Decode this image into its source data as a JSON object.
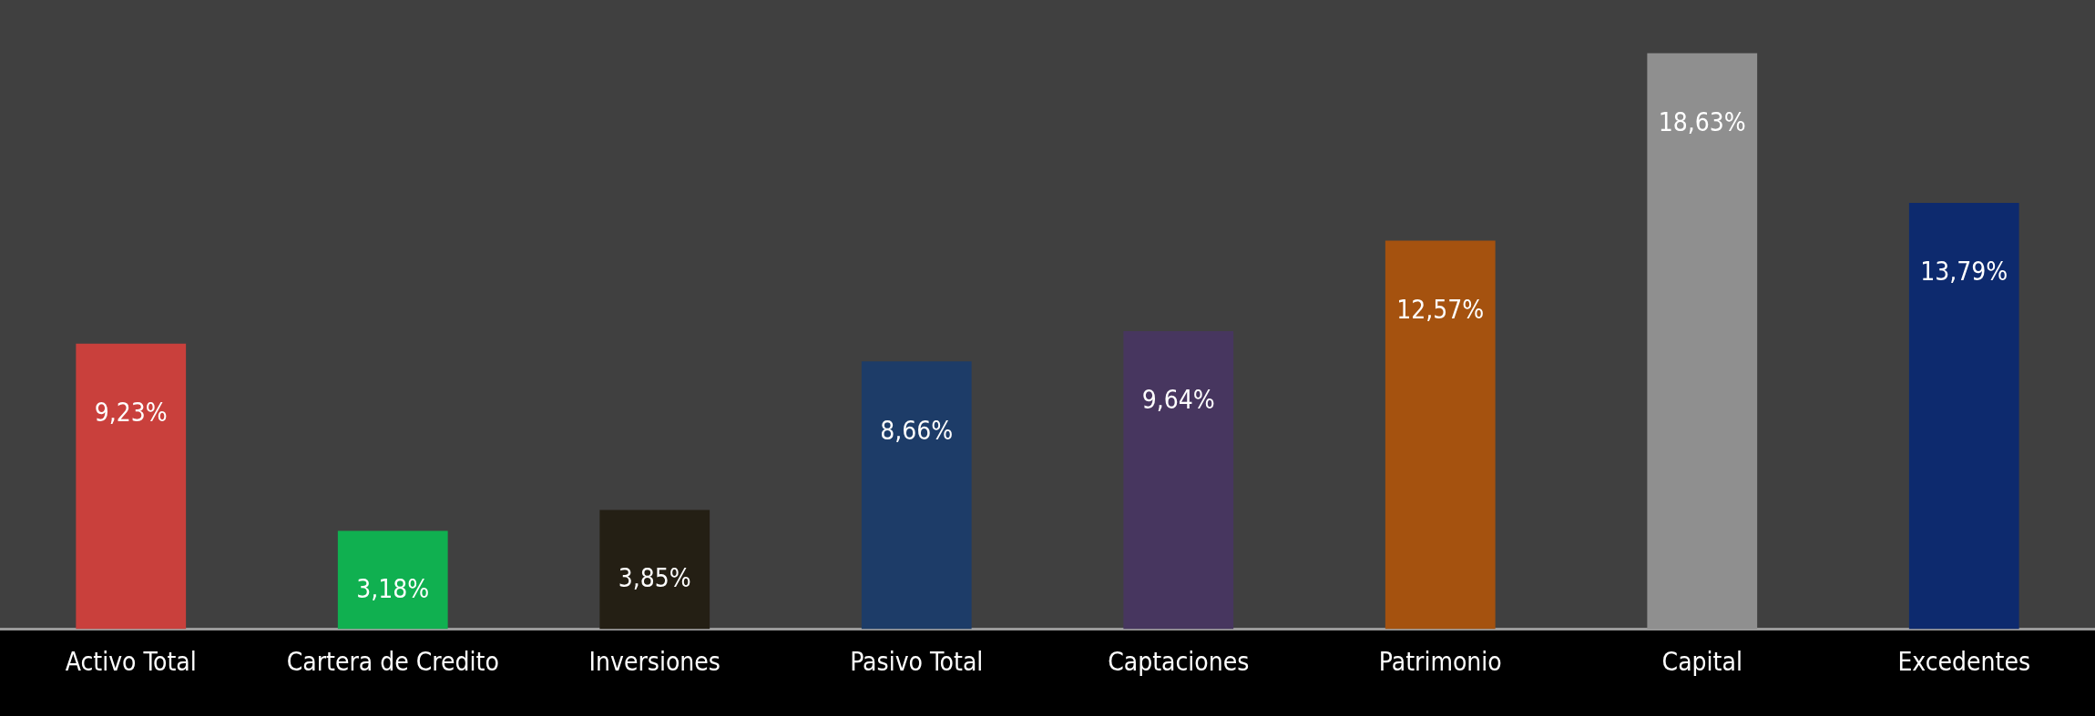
{
  "chart_data": {
    "type": "bar",
    "categories": [
      "Activo Total",
      "Cartera de Credito",
      "Inversiones",
      "Pasivo Total",
      "Captaciones",
      "Patrimonio",
      "Capital",
      "Excedentes"
    ],
    "values": [
      9.23,
      3.18,
      3.85,
      8.66,
      9.64,
      12.57,
      18.63,
      13.79
    ],
    "colors": [
      "#c9403c",
      "#10b050",
      "#241f14",
      "#1d3c68",
      "#47365f",
      "#a5520f",
      "#8f8f8f",
      "#0d2a6e"
    ],
    "value_labels": [
      "9,23%",
      "3,18%",
      "3,85%",
      "8,66%",
      "9,64%",
      "12,57%",
      "18,63%",
      "13,79%"
    ],
    "tick_labels": "x",
    "grid": false,
    "legend": false
  }
}
